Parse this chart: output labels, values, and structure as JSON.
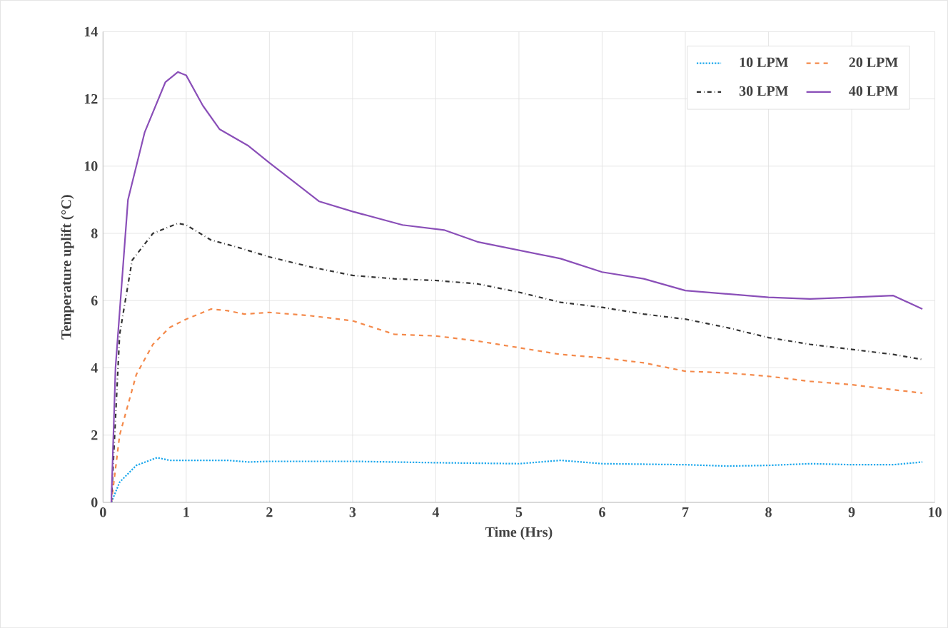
{
  "chart_data": {
    "type": "line",
    "xlabel": "Time (Hrs)",
    "ylabel": "Temperature uplift (°C)",
    "xlim": [
      0,
      10
    ],
    "ylim": [
      0,
      14
    ],
    "xticks": [
      0,
      1,
      2,
      3,
      4,
      5,
      6,
      7,
      8,
      9,
      10
    ],
    "yticks": [
      0,
      2,
      4,
      6,
      8,
      10,
      12,
      14
    ],
    "grid": true,
    "legend": "top right",
    "marker": "none",
    "series": [
      {
        "name": "10 LPM",
        "color": "#1aa7ec",
        "line_style": "dotted",
        "x": [
          0.1,
          0.2,
          0.4,
          0.65,
          0.8,
          1.5,
          1.75,
          2,
          3,
          4,
          5,
          5.5,
          6,
          7,
          7.5,
          8,
          8.5,
          9,
          9.5,
          9.85
        ],
        "values": [
          0,
          0.6,
          1.1,
          1.33,
          1.25,
          1.25,
          1.2,
          1.22,
          1.22,
          1.18,
          1.15,
          1.25,
          1.15,
          1.12,
          1.08,
          1.1,
          1.15,
          1.12,
          1.12,
          1.2
        ]
      },
      {
        "name": "20 LPM",
        "color": "#f4894a",
        "line_style": "dashed",
        "x": [
          0.1,
          0.2,
          0.4,
          0.6,
          0.8,
          1.0,
          1.3,
          1.5,
          1.7,
          2.0,
          2.5,
          3.0,
          3.5,
          4.0,
          4.5,
          5.0,
          5.5,
          6.0,
          6.5,
          7.0,
          7.5,
          8.0,
          8.5,
          9.0,
          9.5,
          9.85
        ],
        "values": [
          0,
          2.0,
          3.8,
          4.7,
          5.2,
          5.45,
          5.75,
          5.7,
          5.6,
          5.65,
          5.55,
          5.4,
          5.0,
          4.95,
          4.8,
          4.6,
          4.4,
          4.3,
          4.15,
          3.9,
          3.85,
          3.75,
          3.6,
          3.5,
          3.35,
          3.25
        ]
      },
      {
        "name": "30 LPM",
        "color": "#333333",
        "line_style": "dashdot",
        "x": [
          0.1,
          0.2,
          0.35,
          0.6,
          0.9,
          1.0,
          1.3,
          1.6,
          2.0,
          2.5,
          3.0,
          3.5,
          4.0,
          4.5,
          5.0,
          5.5,
          6.0,
          6.5,
          7.0,
          7.5,
          8.0,
          8.5,
          9.0,
          9.5,
          9.85
        ],
        "values": [
          0,
          5,
          7.2,
          8.0,
          8.3,
          8.25,
          7.8,
          7.6,
          7.3,
          7.0,
          6.75,
          6.65,
          6.6,
          6.5,
          6.25,
          5.95,
          5.8,
          5.6,
          5.45,
          5.2,
          4.9,
          4.7,
          4.55,
          4.4,
          4.25
        ]
      },
      {
        "name": "40 LPM",
        "color": "#8a4fb8",
        "line_style": "solid",
        "x": [
          0.1,
          0.15,
          0.3,
          0.5,
          0.75,
          0.9,
          1.0,
          1.2,
          1.4,
          1.75,
          2.0,
          2.6,
          3.0,
          3.6,
          4.1,
          4.5,
          5.0,
          5.5,
          6.0,
          6.5,
          7.0,
          7.5,
          8.0,
          8.5,
          9.0,
          9.5,
          9.85
        ],
        "values": [
          0,
          4,
          9,
          11,
          12.5,
          12.8,
          12.7,
          11.8,
          11.1,
          10.6,
          10.1,
          8.95,
          8.65,
          8.25,
          8.1,
          7.75,
          7.5,
          7.25,
          6.85,
          6.65,
          6.3,
          6.2,
          6.1,
          6.05,
          6.1,
          6.15,
          5.75
        ]
      }
    ]
  }
}
